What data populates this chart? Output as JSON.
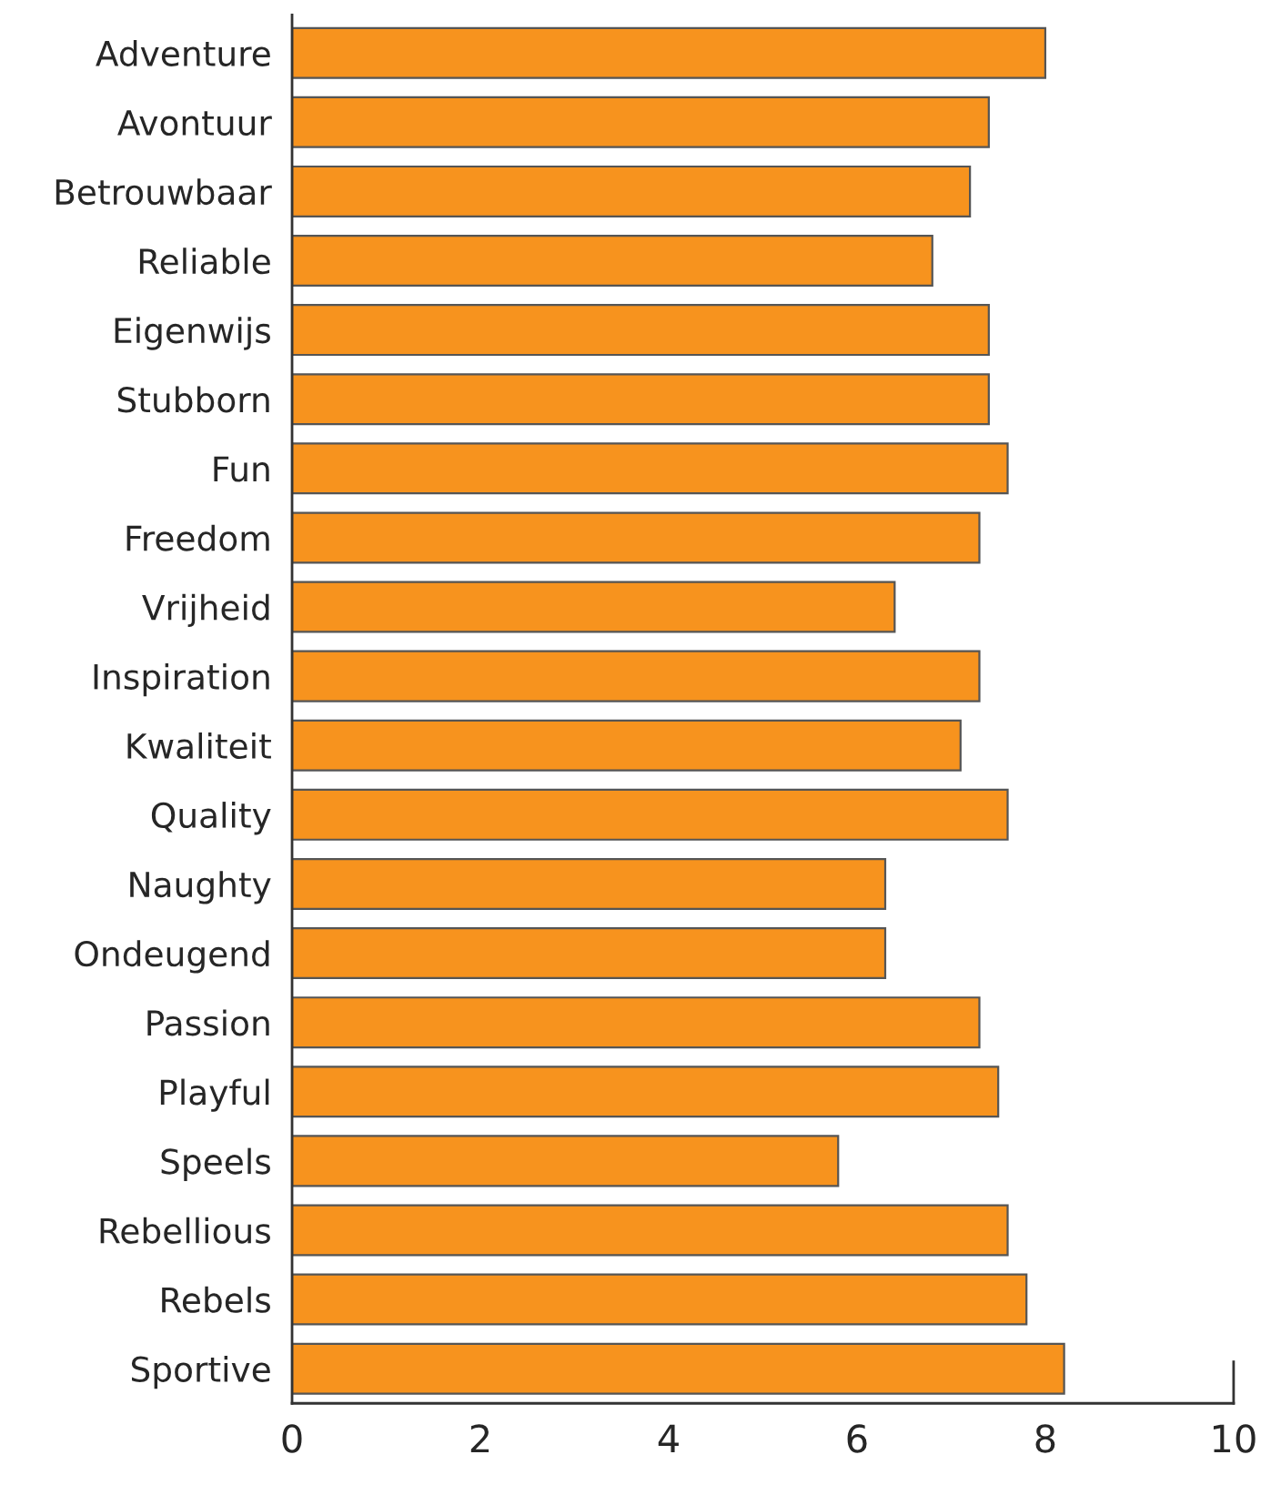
{
  "chart_data": {
    "type": "bar",
    "orientation": "horizontal",
    "color": "#f7931e",
    "categories": [
      "Adventure",
      "Avontuur",
      "Betrouwbaar",
      "Reliable",
      "Eigenwijs",
      "Stubborn",
      "Fun",
      "Freedom",
      "Vrijheid",
      "Inspiration",
      "Kwaliteit",
      "Quality",
      "Naughty",
      "Ondeugend",
      "Passion",
      "Playful",
      "Speels",
      "Rebellious",
      "Rebels",
      "Sportive"
    ],
    "values": [
      8.0,
      7.4,
      7.2,
      6.8,
      7.4,
      7.4,
      7.6,
      7.3,
      6.4,
      7.3,
      7.1,
      7.6,
      6.3,
      6.3,
      7.3,
      7.5,
      5.8,
      7.6,
      7.8,
      8.2
    ],
    "xlim": [
      0,
      10
    ],
    "xticks": [
      0,
      2,
      4,
      6,
      8,
      10
    ],
    "grid": false,
    "legend": false
  }
}
